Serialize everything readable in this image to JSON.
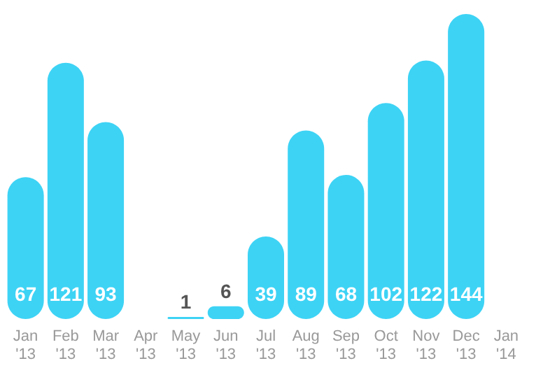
{
  "chart_data": {
    "type": "bar",
    "categories": [
      "Jan\n'13",
      "Feb\n'13",
      "Mar\n'13",
      "Apr\n'13",
      "May\n'13",
      "Jun\n'13",
      "Jul\n'13",
      "Aug\n'13",
      "Sep\n'13",
      "Oct\n'13",
      "Nov\n'13",
      "Dec\n'13",
      "Jan\n'14"
    ],
    "values": [
      67,
      121,
      93,
      null,
      1,
      6,
      39,
      89,
      68,
      102,
      122,
      144,
      null
    ],
    "color": "#3dd3f5",
    "data_labels": true,
    "grid": false
  }
}
